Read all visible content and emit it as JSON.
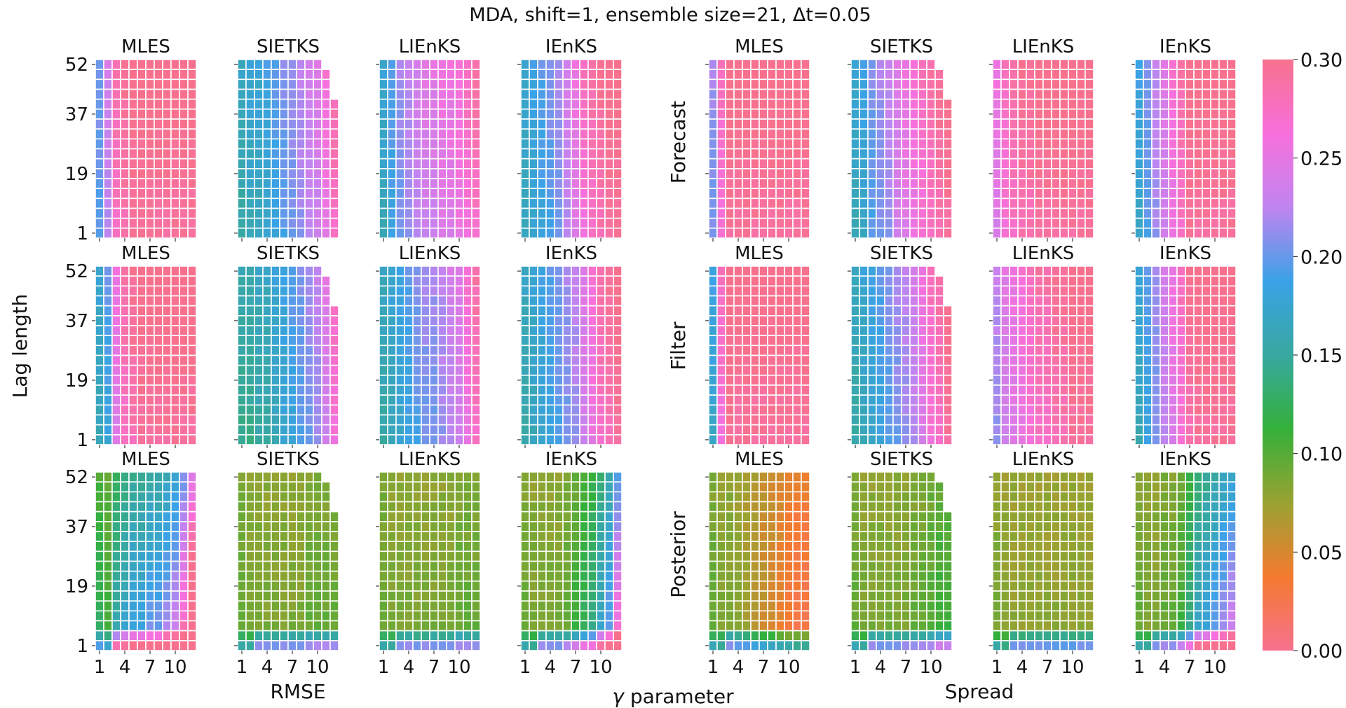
{
  "title": "MDA, shift=1, ensemble size=21, Δt=0.05",
  "panel_titles": [
    "MLES",
    "SIETKS",
    "LIEnKS",
    "IEnKS"
  ],
  "row_labels": [
    "Forecast",
    "Filter",
    "Posterior"
  ],
  "group_labels": [
    "RMSE",
    "Spread"
  ],
  "ylabel": "Lag length",
  "xlabel_sym": "γ",
  "xlabel_rest": " parameter",
  "x_tick_labels": [
    "1",
    "4",
    "7",
    "10"
  ],
  "y_tick_labels": [
    "52",
    "37",
    "19",
    "1"
  ],
  "colorbar_ticks": [
    "0.30",
    "0.25",
    "0.20",
    "0.15",
    "0.10",
    "0.05",
    "0.00"
  ],
  "chart_data": {
    "type": "heatmap",
    "title": "MDA, shift=1, ensemble size=21, Δt=0.05",
    "ylabel": "Lag length",
    "xlabel": "γ parameter",
    "x_values": [
      1,
      2,
      3,
      4,
      5,
      6,
      7,
      8,
      9,
      10,
      11,
      12
    ],
    "x_ticks": [
      1,
      4,
      7,
      10
    ],
    "y_ticks": [
      1,
      19,
      37,
      52
    ],
    "n_lag_rows": 18,
    "color_range": [
      0.0,
      0.3
    ],
    "colormap_stops": [
      "#f7718e",
      "#f47a2f",
      "#9aa231",
      "#34b03a",
      "#37a8a0",
      "#3aa2e6",
      "#c184f0",
      "#f770dc",
      "#f7718e"
    ],
    "groups": [
      {
        "name": "RMSE",
        "methods": [
          "MLES",
          "SIETKS",
          "LIEnKS",
          "IEnKS"
        ]
      },
      {
        "name": "Spread",
        "methods": [
          "MLES",
          "SIETKS",
          "LIEnKS",
          "IEnKS"
        ]
      }
    ],
    "rows": [
      "Forecast",
      "Filter",
      "Posterior"
    ],
    "masked_upper_right_methods": [
      "SIETKS"
    ],
    "panel_profiles": {
      "RMSE": {
        "Forecast": {
          "MLES": [
            0.2,
            0.23,
            0.28,
            0.29,
            0.3,
            0.3,
            0.3,
            0.3,
            0.3,
            0.3,
            0.3,
            0.3
          ],
          "SIETKS": [
            0.16,
            0.17,
            0.17,
            0.18,
            0.19,
            0.2,
            0.21,
            0.22,
            0.23,
            0.24,
            0.26,
            0.28
          ],
          "LIEnKS": [
            0.17,
            0.19,
            0.21,
            0.22,
            0.23,
            0.24,
            0.24,
            0.25,
            0.25,
            0.26,
            0.27,
            0.28
          ],
          "IEnKS": [
            0.17,
            0.18,
            0.19,
            0.2,
            0.21,
            0.23,
            0.25,
            0.27,
            0.28,
            0.29,
            0.3,
            0.3
          ]
        },
        "Filter": {
          "MLES": [
            0.17,
            0.19,
            0.25,
            0.28,
            0.29,
            0.3,
            0.3,
            0.3,
            0.3,
            0.3,
            0.3,
            0.3
          ],
          "SIETKS": [
            0.15,
            0.15,
            0.16,
            0.16,
            0.17,
            0.18,
            0.19,
            0.2,
            0.21,
            0.22,
            0.24,
            0.27
          ],
          "LIEnKS": [
            0.16,
            0.17,
            0.18,
            0.19,
            0.2,
            0.21,
            0.21,
            0.22,
            0.23,
            0.24,
            0.26,
            0.28
          ],
          "IEnKS": [
            0.16,
            0.17,
            0.18,
            0.19,
            0.2,
            0.21,
            0.22,
            0.24,
            0.26,
            0.28,
            0.29,
            0.3
          ]
        },
        "Posterior": {
          "MLES": [
            0.11,
            0.1,
            0.13,
            0.14,
            0.15,
            0.15,
            0.16,
            0.16,
            0.17,
            0.18,
            0.21,
            0.25
          ],
          "SIETKS": [
            0.09,
            0.085,
            0.085,
            0.085,
            0.085,
            0.085,
            0.085,
            0.085,
            0.09,
            0.09,
            0.09,
            0.09
          ],
          "LIEnKS": [
            0.09,
            0.085,
            0.085,
            0.085,
            0.085,
            0.085,
            0.085,
            0.085,
            0.085,
            0.09,
            0.09,
            0.09
          ],
          "IEnKS": [
            0.09,
            0.085,
            0.085,
            0.085,
            0.085,
            0.09,
            0.1,
            0.11,
            0.12,
            0.14,
            0.16,
            0.2
          ]
        }
      },
      "Spread": {
        "Forecast": {
          "MLES": [
            0.21,
            0.27,
            0.3,
            0.3,
            0.3,
            0.3,
            0.3,
            0.3,
            0.3,
            0.3,
            0.3,
            0.3
          ],
          "SIETKS": [
            0.17,
            0.18,
            0.2,
            0.21,
            0.22,
            0.24,
            0.25,
            0.26,
            0.27,
            0.28,
            0.29,
            0.3
          ],
          "LIEnKS": [
            0.25,
            0.27,
            0.28,
            0.29,
            0.29,
            0.3,
            0.3,
            0.3,
            0.3,
            0.3,
            0.3,
            0.3
          ],
          "IEnKS": [
            0.18,
            0.2,
            0.22,
            0.24,
            0.26,
            0.28,
            0.3,
            0.3,
            0.3,
            0.3,
            0.3,
            0.3
          ]
        },
        "Filter": {
          "MLES": [
            0.18,
            0.27,
            0.3,
            0.3,
            0.3,
            0.3,
            0.3,
            0.3,
            0.3,
            0.3,
            0.3,
            0.3
          ],
          "SIETKS": [
            0.16,
            0.17,
            0.18,
            0.19,
            0.2,
            0.21,
            0.22,
            0.23,
            0.25,
            0.27,
            0.28,
            0.3
          ],
          "LIEnKS": [
            0.22,
            0.24,
            0.25,
            0.26,
            0.27,
            0.28,
            0.28,
            0.29,
            0.29,
            0.3,
            0.3,
            0.3
          ],
          "IEnKS": [
            0.17,
            0.19,
            0.21,
            0.23,
            0.25,
            0.27,
            0.29,
            0.3,
            0.3,
            0.3,
            0.3,
            0.3
          ]
        },
        "Posterior": {
          "MLES": [
            0.09,
            0.085,
            0.085,
            0.08,
            0.075,
            0.07,
            0.065,
            0.06,
            0.055,
            0.05,
            0.045,
            0.045
          ],
          "SIETKS": [
            0.09,
            0.085,
            0.085,
            0.085,
            0.085,
            0.085,
            0.085,
            0.09,
            0.09,
            0.095,
            0.1,
            0.1
          ],
          "LIEnKS": [
            0.085,
            0.08,
            0.08,
            0.08,
            0.08,
            0.08,
            0.08,
            0.08,
            0.08,
            0.08,
            0.08,
            0.08
          ],
          "IEnKS": [
            0.09,
            0.085,
            0.085,
            0.09,
            0.09,
            0.1,
            0.12,
            0.14,
            0.15,
            0.16,
            0.17,
            0.18
          ]
        }
      }
    }
  }
}
